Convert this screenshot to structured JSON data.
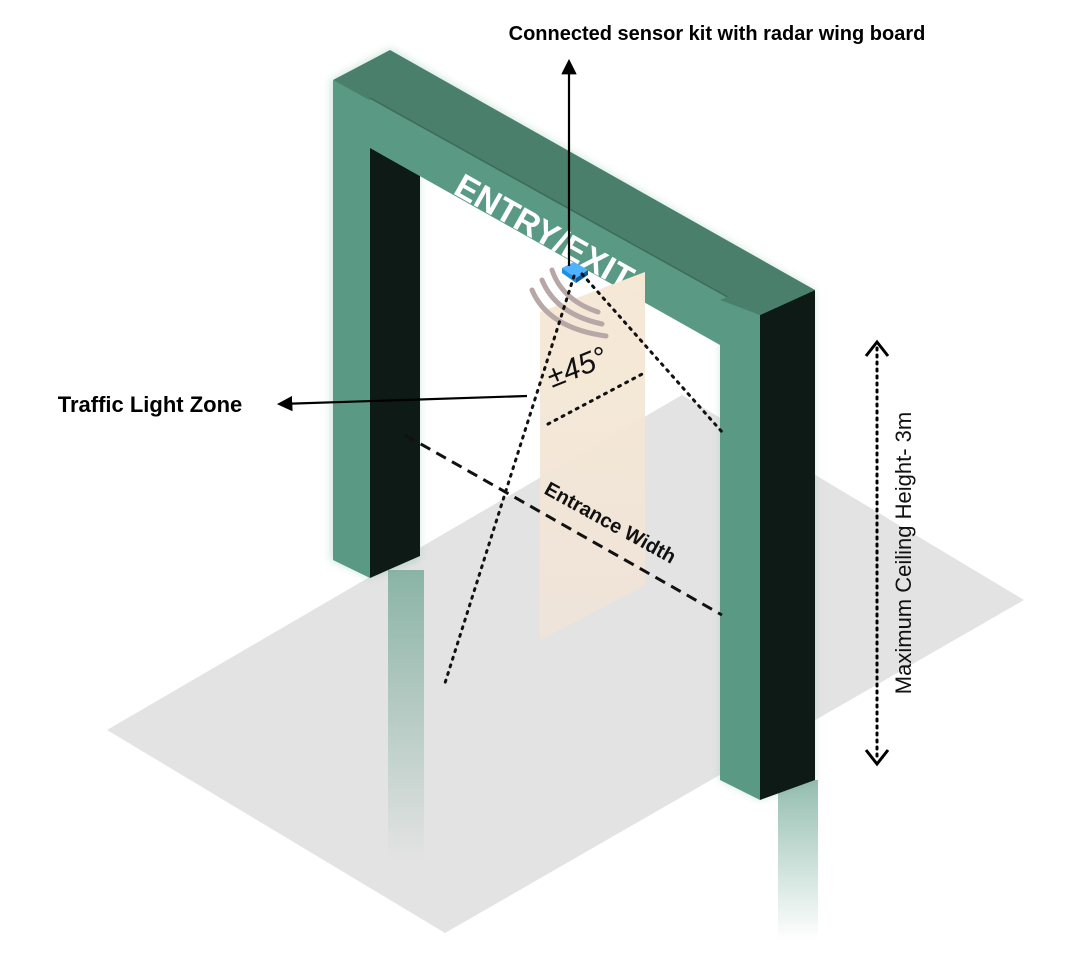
{
  "labels": {
    "sensor_callout": "Connected sensor kit with radar wing board",
    "zone_callout": "Traffic Light Zone",
    "sign_text": "ENTRY/EXIT",
    "angle": "±45°",
    "entrance_width": "Entrance Width",
    "ceiling_height": "Maximum  Ceiling Height- 3m"
  },
  "colors": {
    "gate_front": "#5a9a85",
    "gate_top": "#4a7f6c",
    "gate_dark": "#0e1a16",
    "floor": "#e3e3e3",
    "zone": "#f6e8d5",
    "sensor": "#1e90e0",
    "radar_waves": "#b7a7a7"
  },
  "icons": {
    "sensor": "radar-sensor-icon"
  }
}
